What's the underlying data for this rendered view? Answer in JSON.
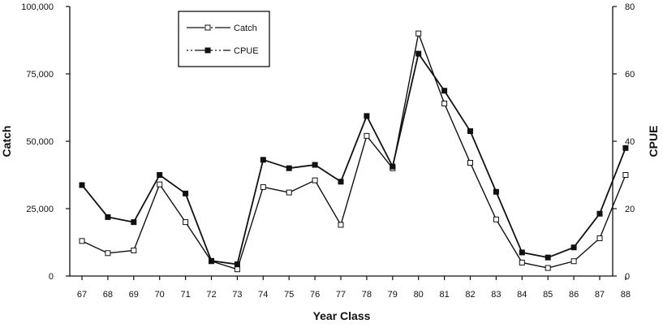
{
  "chart_data": {
    "type": "line",
    "title": "",
    "xlabel": "Year Class",
    "ylabel": "Catch",
    "y2label": "CPUE",
    "categories": [
      "67",
      "68",
      "69",
      "70",
      "71",
      "72",
      "73",
      "74",
      "75",
      "76",
      "77",
      "78",
      "79",
      "80",
      "81",
      "82",
      "83",
      "84",
      "85",
      "86",
      "87",
      "88"
    ],
    "ylim": [
      0,
      100000
    ],
    "y2lim": [
      0,
      80
    ],
    "yticks": [
      "0",
      "25,000",
      "50,000",
      "75,000",
      "100,000"
    ],
    "y2ticks": [
      "0",
      "20",
      "40",
      "60",
      "80"
    ],
    "grid": false,
    "legend_position": "top-left",
    "series": [
      {
        "name": "Catch",
        "axis": "left",
        "marker": "open-square",
        "values": [
          13000,
          8500,
          9500,
          34000,
          20000,
          5500,
          2500,
          33000,
          31000,
          35500,
          19000,
          52000,
          40000,
          90000,
          64000,
          42000,
          21000,
          5000,
          3000,
          5500,
          14000,
          37500
        ]
      },
      {
        "name": "CPUE",
        "axis": "right",
        "marker": "filled-square",
        "values": [
          27,
          17.5,
          16,
          30,
          24.5,
          4.5,
          3.5,
          34.5,
          32,
          33,
          28,
          47.5,
          32.5,
          66,
          55,
          43,
          25,
          7,
          5.5,
          8.5,
          18.5,
          38
        ]
      }
    ]
  }
}
